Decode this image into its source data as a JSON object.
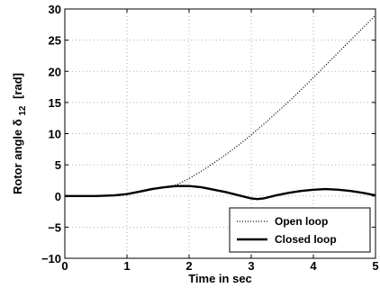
{
  "chart_data": {
    "type": "line",
    "xlabel": "Time in sec",
    "ylabel_main": "Rotor angle δ",
    "ylabel_sub": "12",
    "ylabel_unit": "[rad]",
    "xlim": [
      0,
      5
    ],
    "ylim": [
      -10,
      30
    ],
    "xticks": [
      0,
      1,
      2,
      3,
      4,
      5
    ],
    "yticks": [
      -10,
      -5,
      0,
      5,
      10,
      15,
      20,
      25,
      30
    ],
    "grid": true,
    "legend_position": "bottom-right",
    "series": [
      {
        "name": "Open loop",
        "style": "dotted",
        "color": "#000000",
        "x": [
          0,
          0.5,
          1.0,
          1.2,
          1.4,
          1.6,
          1.8,
          2.0,
          2.2,
          2.4,
          2.6,
          2.8,
          3.0,
          3.2,
          3.4,
          3.6,
          3.8,
          4.0,
          4.2,
          4.4,
          4.6,
          4.8,
          5.0
        ],
        "y": [
          0,
          0,
          0.3,
          0.6,
          1.0,
          1.4,
          1.8,
          2.8,
          4.0,
          5.3,
          6.7,
          8.2,
          9.8,
          11.5,
          13.3,
          15.1,
          17.0,
          19.0,
          21.0,
          23.0,
          25.0,
          27.0,
          29.0
        ]
      },
      {
        "name": "Closed loop",
        "style": "solid",
        "color": "#000000",
        "x": [
          0,
          0.5,
          0.8,
          1.0,
          1.2,
          1.4,
          1.6,
          1.8,
          2.0,
          2.2,
          2.4,
          2.6,
          2.8,
          3.0,
          3.1,
          3.2,
          3.4,
          3.6,
          3.8,
          4.0,
          4.2,
          4.4,
          4.6,
          4.8,
          5.0
        ],
        "y": [
          0,
          0,
          0.1,
          0.3,
          0.7,
          1.1,
          1.4,
          1.6,
          1.6,
          1.4,
          1.0,
          0.6,
          0.1,
          -0.4,
          -0.5,
          -0.4,
          0.1,
          0.5,
          0.8,
          1.0,
          1.1,
          1.0,
          0.8,
          0.5,
          0.1
        ]
      }
    ]
  }
}
